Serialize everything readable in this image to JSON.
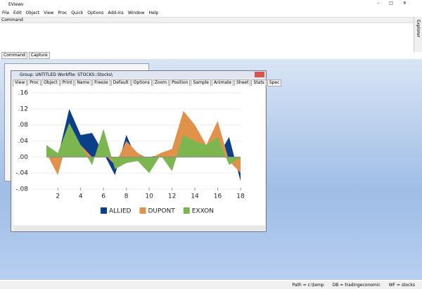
{
  "app": {
    "title": "EViews",
    "menu": [
      "File",
      "Edit",
      "Object",
      "View",
      "Proc",
      "Quick",
      "Options",
      "Add-ins",
      "Window",
      "Help"
    ],
    "command_label": "Command",
    "tabs": [
      "Command",
      "Capture"
    ],
    "side_panel": "Command Explorer",
    "status": [
      "Path = c:\\temp",
      "DB = tradingeconomic",
      "WF = stocks"
    ]
  },
  "group_window": {
    "title": "Group: UNTITLED   Workfile: STOCKS::Stocks\\",
    "toolbar": [
      "View",
      "Proc",
      "Object",
      "Print",
      "Name",
      "Freeze",
      "Default",
      "Options",
      "Zoom",
      "Position",
      "Sample",
      "Animate",
      "Sheet",
      "Stats",
      "Spec"
    ],
    "chart": {
      "type": "area",
      "x": [
        1,
        2,
        3,
        4,
        5,
        6,
        7,
        8,
        9,
        10,
        11,
        12,
        13,
        14,
        15,
        16,
        17,
        18
      ],
      "series": [
        {
          "name": "ALLIED",
          "color": "#0b3f8a",
          "values": [
            0.02,
            0.0,
            0.12,
            0.055,
            0.06,
            0.01,
            -0.045,
            0.055,
            -0.01,
            0.0,
            0.005,
            0.005,
            0.0,
            0.0,
            0.0,
            0.0,
            0.05,
            -0.06
          ]
        },
        {
          "name": "DUPONT",
          "color": "#e0914a",
          "values": [
            0.01,
            -0.045,
            0.06,
            0.03,
            0.0,
            0.01,
            -0.02,
            0.04,
            0.01,
            -0.005,
            0.01,
            0.02,
            0.115,
            0.08,
            0.03,
            0.09,
            -0.01,
            -0.04
          ]
        },
        {
          "name": "EXXON",
          "color": "#7cb64f",
          "values": [
            0.03,
            0.01,
            0.085,
            0.03,
            -0.02,
            0.07,
            -0.03,
            -0.015,
            -0.01,
            -0.04,
            0.005,
            -0.035,
            0.055,
            0.04,
            0.03,
            0.05,
            -0.02,
            0.0
          ]
        }
      ],
      "xlim": [
        1,
        18
      ],
      "xticks": [
        2,
        4,
        6,
        8,
        10,
        12,
        14,
        16,
        18
      ],
      "ylim": [
        -0.08,
        0.16
      ],
      "yticks": [
        {
          "value": -0.08,
          "label": "-.08"
        },
        {
          "value": -0.04,
          "label": "-.04"
        },
        {
          "value": 0,
          "label": ".00"
        },
        {
          "value": 0.04,
          "label": ".04"
        },
        {
          "value": 0.08,
          "label": ".08"
        },
        {
          "value": 0.12,
          "label": ".12"
        },
        {
          "value": 0.16,
          "label": ".16"
        }
      ],
      "legend": "bottom"
    }
  }
}
